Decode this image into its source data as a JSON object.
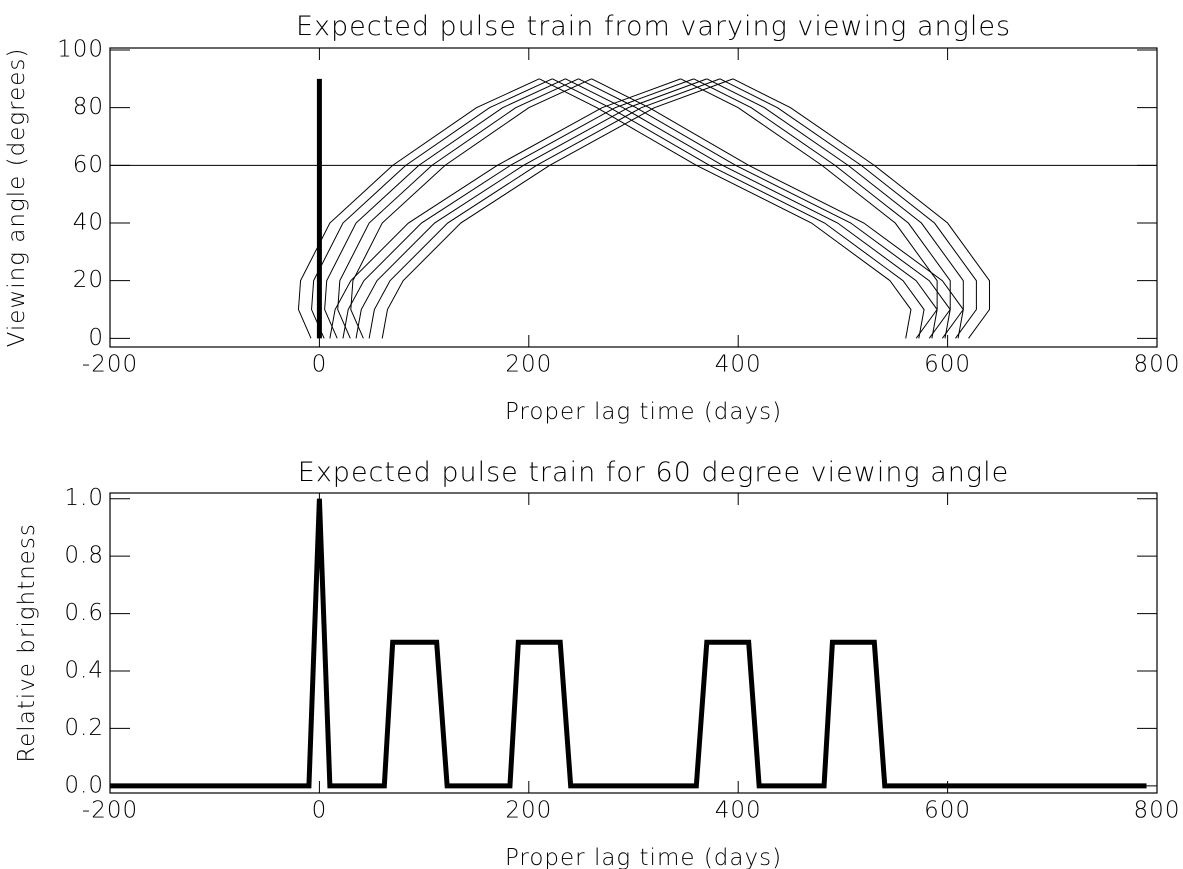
{
  "chart_data": [
    {
      "type": "line",
      "title": "Expected pulse train from varying viewing angles",
      "x_label": "Proper lag time (days)",
      "y_label": "Viewing angle (degrees)",
      "xlim": [
        -200,
        800
      ],
      "xticks": [
        -200,
        0,
        200,
        400,
        600,
        800
      ],
      "ylim": [
        -3,
        100.7
      ],
      "yticks": [
        0,
        20,
        40,
        60,
        80,
        100
      ],
      "series": [
        {
          "color": "#000000",
          "line_width": 1,
          "x": [
            -8,
            -20,
            -18,
            10,
            70,
            150,
            210
          ],
          "values": [
            0,
            10,
            20,
            40,
            60,
            80,
            90
          ]
        },
        {
          "color": "#000000",
          "line_width": 1,
          "x": [
            4.5,
            -7.5,
            -5.5,
            22.5,
            82.5,
            162.5,
            222.5
          ],
          "values": [
            0,
            10,
            20,
            40,
            60,
            80,
            90
          ]
        },
        {
          "color": "#000000",
          "line_width": 1,
          "x": [
            17,
            5,
            7,
            35,
            95,
            175,
            235
          ],
          "values": [
            0,
            10,
            20,
            40,
            60,
            80,
            90
          ]
        },
        {
          "color": "#000000",
          "line_width": 1,
          "x": [
            29.5,
            17.5,
            19.5,
            47.5,
            107.5,
            187.5,
            247.5
          ],
          "values": [
            0,
            10,
            20,
            40,
            60,
            80,
            90
          ]
        },
        {
          "color": "#000000",
          "line_width": 1,
          "x": [
            42,
            30,
            32,
            60,
            120,
            200,
            260
          ],
          "values": [
            0,
            10,
            20,
            40,
            60,
            80,
            90
          ]
        },
        {
          "color": "#000000",
          "line_width": 1,
          "x": [
            10,
            15,
            30,
            85,
            170,
            270,
            345
          ],
          "values": [
            0,
            10,
            20,
            40,
            60,
            80,
            90
          ]
        },
        {
          "color": "#000000",
          "line_width": 1,
          "x": [
            22.5,
            27.5,
            42.5,
            97.5,
            182.5,
            282.5,
            357.5
          ],
          "values": [
            0,
            10,
            20,
            40,
            60,
            80,
            90
          ]
        },
        {
          "color": "#000000",
          "line_width": 1,
          "x": [
            35,
            40,
            55,
            110,
            195,
            295,
            370
          ],
          "values": [
            0,
            10,
            20,
            40,
            60,
            80,
            90
          ]
        },
        {
          "color": "#000000",
          "line_width": 1,
          "x": [
            47.5,
            52.5,
            67.5,
            122.5,
            207.5,
            307.5,
            382.5
          ],
          "values": [
            0,
            10,
            20,
            40,
            60,
            80,
            90
          ]
        },
        {
          "color": "#000000",
          "line_width": 1,
          "x": [
            60,
            65,
            80,
            135,
            220,
            320,
            395
          ],
          "values": [
            0,
            10,
            20,
            40,
            60,
            80,
            90
          ]
        },
        {
          "color": "#000000",
          "line_width": 1,
          "x": [
            560,
            565,
            545,
            470,
            360,
            265,
            210
          ],
          "values": [
            0,
            10,
            20,
            40,
            60,
            80,
            90
          ]
        },
        {
          "color": "#000000",
          "line_width": 1,
          "x": [
            572.5,
            577.5,
            557.5,
            482.5,
            372.5,
            277.5,
            222.5
          ],
          "values": [
            0,
            10,
            20,
            40,
            60,
            80,
            90
          ]
        },
        {
          "color": "#000000",
          "line_width": 1,
          "x": [
            585,
            590,
            570,
            495,
            385,
            290,
            235
          ],
          "values": [
            0,
            10,
            20,
            40,
            60,
            80,
            90
          ]
        },
        {
          "color": "#000000",
          "line_width": 1,
          "x": [
            597.5,
            602.5,
            582.5,
            507.5,
            397.5,
            302.5,
            247.5
          ],
          "values": [
            0,
            10,
            20,
            40,
            60,
            80,
            90
          ]
        },
        {
          "color": "#000000",
          "line_width": 1,
          "x": [
            610,
            615,
            595,
            520,
            410,
            315,
            260
          ],
          "values": [
            0,
            10,
            20,
            40,
            60,
            80,
            90
          ]
        },
        {
          "color": "#000000",
          "line_width": 1,
          "x": [
            570,
            590,
            590,
            550,
            480,
            400,
            345
          ],
          "values": [
            0,
            10,
            20,
            40,
            60,
            80,
            90
          ]
        },
        {
          "color": "#000000",
          "line_width": 1,
          "x": [
            582.5,
            602.5,
            602.5,
            562.5,
            492.5,
            412.5,
            357.5
          ],
          "values": [
            0,
            10,
            20,
            40,
            60,
            80,
            90
          ]
        },
        {
          "color": "#000000",
          "line_width": 1,
          "x": [
            595,
            615,
            615,
            575,
            505,
            425,
            370
          ],
          "values": [
            0,
            10,
            20,
            40,
            60,
            80,
            90
          ]
        },
        {
          "color": "#000000",
          "line_width": 1,
          "x": [
            607.5,
            627.5,
            627.5,
            587.5,
            517.5,
            437.5,
            382.5
          ],
          "values": [
            0,
            10,
            20,
            40,
            60,
            80,
            90
          ]
        },
        {
          "color": "#000000",
          "line_width": 1,
          "x": [
            620,
            640,
            640,
            600,
            530,
            450,
            395
          ],
          "values": [
            0,
            10,
            20,
            40,
            60,
            80,
            90
          ]
        },
        {
          "color": "#000000",
          "line_width": 5,
          "x": [
            0,
            0
          ],
          "values": [
            0,
            90
          ]
        },
        {
          "color": "#000000",
          "line_width": 1,
          "x": [
            -200,
            800
          ],
          "values": [
            60,
            60
          ]
        }
      ]
    },
    {
      "type": "line",
      "title": "Expected pulse train for 60 degree viewing angle",
      "x_label": "Proper lag time (days)",
      "y_label": "Relative brightness",
      "xlim": [
        -200,
        800
      ],
      "xticks": [
        -200,
        0,
        200,
        400,
        600,
        800
      ],
      "ylim": [
        -0.025,
        1.02
      ],
      "yticks": [
        {
          "value": 0,
          "label": "0.0"
        },
        0.2,
        0.4,
        0.6,
        0.8,
        {
          "value": 1,
          "label": "1.0"
        }
      ],
      "series": [
        {
          "color": "#000000",
          "line_width": 5,
          "x": [
            -200,
            -10,
            0,
            10,
            62,
            70,
            112,
            122,
            182,
            190,
            230,
            240,
            360,
            370,
            410,
            420,
            482,
            490,
            530,
            540,
            790
          ],
          "values": [
            0,
            0,
            1,
            0,
            0,
            0.5,
            0.5,
            0,
            0,
            0.5,
            0.5,
            0,
            0,
            0.5,
            0.5,
            0,
            0,
            0.5,
            0.5,
            0,
            0
          ]
        }
      ]
    }
  ]
}
